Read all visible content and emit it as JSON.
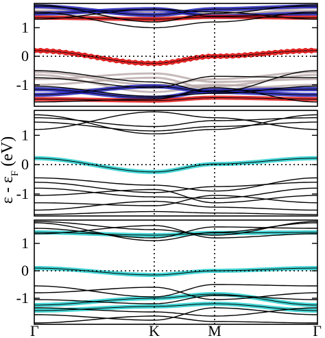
{
  "chart_data": {
    "type": "line",
    "ylabel": "ε - ε_F (eV)",
    "ylabel_main": "ε - ε",
    "ylabel_sub": "F",
    "ylabel_unit": "(eV)",
    "x_ticks": [
      "Γ",
      "K",
      "M",
      "Γ"
    ],
    "panels": [
      {
        "ylim": [
          -1.75,
          1.85
        ],
        "y_ticks": [
          "1",
          "0",
          "-1"
        ],
        "grey_series": [
          {
            "values": [
              1.75,
              1.4,
              1.58,
              1.75
            ]
          },
          {
            "values": [
              1.6,
              1.55,
              1.48,
              1.6
            ]
          },
          {
            "values": [
              1.7,
              1.25,
              1.4,
              1.7
            ]
          },
          {
            "values": [
              1.45,
              1.3,
              1.35,
              1.45
            ]
          },
          {
            "values": [
              -0.55,
              -1.0,
              -0.8,
              -0.55
            ]
          },
          {
            "values": [
              -0.8,
              -0.6,
              -0.9,
              -0.8
            ]
          },
          {
            "values": [
              -1.0,
              -0.75,
              -1.15,
              -1.0
            ]
          },
          {
            "values": [
              -1.2,
              -1.1,
              -1.0,
              -1.2
            ]
          },
          {
            "values": [
              -0.65,
              -1.25,
              -1.05,
              -0.65
            ]
          }
        ],
        "black_series": [
          {
            "values": [
              1.8,
              1.2,
              1.5,
              1.8
            ]
          },
          {
            "values": [
              1.55,
              1.0,
              1.2,
              1.55
            ]
          },
          {
            "values": [
              1.3,
              1.65,
              1.55,
              1.3
            ]
          },
          {
            "values": [
              -0.5,
              -0.9,
              -1.25,
              -0.5
            ]
          },
          {
            "values": [
              -0.75,
              -1.1,
              -0.7,
              -0.75
            ]
          },
          {
            "values": [
              -1.05,
              -1.4,
              -1.3,
              -1.05
            ]
          },
          {
            "values": [
              -1.6,
              -1.5,
              -1.1,
              -1.6
            ]
          }
        ],
        "colored_series": [
          {
            "color": "#2222bb",
            "values": [
              1.75,
              1.45,
              1.65,
              1.75
            ]
          },
          {
            "color": "#2222bb",
            "values": [
              1.5,
              1.65,
              1.4,
              1.5
            ]
          },
          {
            "color": "#2222bb",
            "values": [
              -1.35,
              -1.05,
              -1.25,
              -1.35
            ]
          },
          {
            "color": "#2222bb",
            "values": [
              -1.15,
              -1.45,
              -1.2,
              -1.15
            ]
          },
          {
            "color": "#dd1111",
            "values": [
              1.35,
              1.3,
              1.38,
              1.35
            ]
          },
          {
            "color": "#dd1111",
            "values": [
              -1.5,
              -1.55,
              -1.45,
              -1.5
            ]
          },
          {
            "color": "#dd1111",
            "values": [
              0.2,
              -0.25,
              0.0,
              0.2
            ],
            "markers": true
          }
        ]
      },
      {
        "ylim": [
          -1.75,
          1.85
        ],
        "y_ticks": [
          "1",
          "0",
          "-1"
        ],
        "grey_series": [],
        "black_series": [
          {
            "values": [
              1.6,
              1.3,
              1.5,
              1.6
            ]
          },
          {
            "values": [
              1.45,
              1.15,
              1.3,
              1.45
            ]
          },
          {
            "values": [
              1.2,
              1.8,
              1.6,
              1.2
            ]
          },
          {
            "values": [
              1.7,
              1.05,
              1.2,
              1.7
            ]
          },
          {
            "values": [
              -0.45,
              -0.7,
              -0.9,
              -0.45
            ]
          },
          {
            "values": [
              -0.6,
              -0.95,
              -0.75,
              -0.6
            ]
          },
          {
            "values": [
              -0.8,
              -1.1,
              -1.15,
              -0.8
            ]
          },
          {
            "values": [
              -1.05,
              -0.85,
              -1.3,
              -1.05
            ]
          },
          {
            "values": [
              -1.3,
              -1.4,
              -1.05,
              -1.3
            ]
          },
          {
            "values": [
              -1.55,
              -1.25,
              -1.45,
              -1.55
            ]
          },
          {
            "values": [
              -1.7,
              -1.6,
              -1.65,
              -1.7
            ]
          }
        ],
        "colored_series": [
          {
            "color": "#22cccc",
            "values": [
              0.22,
              -0.25,
              0.02,
              0.22
            ]
          }
        ]
      },
      {
        "ylim": [
          -1.95,
          1.85
        ],
        "y_ticks": [
          "1",
          "0",
          "-1"
        ],
        "grey_series": [],
        "black_series": [
          {
            "values": [
              1.75,
              1.1,
              1.4,
              1.75
            ]
          },
          {
            "values": [
              1.55,
              1.2,
              1.6,
              1.55
            ]
          },
          {
            "values": [
              1.8,
              1.5,
              1.3,
              1.8
            ]
          },
          {
            "values": [
              1.35,
              1.65,
              1.2,
              1.35
            ]
          },
          {
            "values": [
              -0.55,
              -0.95,
              -0.5,
              -0.55
            ]
          },
          {
            "values": [
              -0.8,
              -0.6,
              -1.05,
              -0.8
            ]
          },
          {
            "values": [
              -1.05,
              -1.2,
              -0.9,
              -1.05
            ]
          },
          {
            "values": [
              -1.35,
              -1.5,
              -1.65,
              -1.35
            ]
          },
          {
            "values": [
              -1.6,
              -1.8,
              -1.35,
              -1.6
            ]
          },
          {
            "values": [
              -1.9,
              -1.65,
              -1.85,
              -1.9
            ]
          }
        ],
        "colored_series": [
          {
            "color": "#22cccc",
            "values": [
              1.4,
              1.3,
              1.38,
              1.4
            ]
          },
          {
            "color": "#22cccc",
            "values": [
              0.1,
              -0.15,
              0.0,
              0.1
            ]
          },
          {
            "color": "#22cccc",
            "values": [
              -1.25,
              -1.0,
              -0.85,
              -1.25
            ]
          },
          {
            "color": "#22cccc",
            "values": [
              -1.45,
              -1.3,
              -1.2,
              -1.45
            ]
          }
        ]
      }
    ]
  }
}
